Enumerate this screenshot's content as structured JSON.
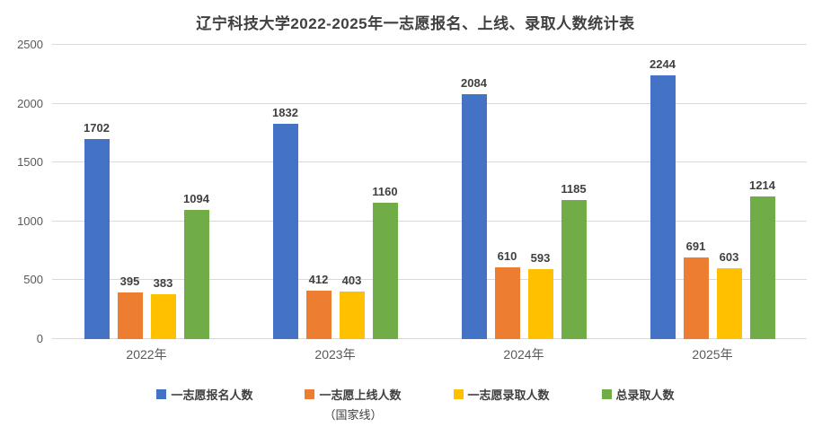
{
  "chart_data": {
    "type": "bar",
    "title": "辽宁科技大学2022-2025年一志愿报名、上线、录取人数统计表",
    "categories": [
      "2022年",
      "2023年",
      "2024年",
      "2025年"
    ],
    "series": [
      {
        "name": "一志愿报名人数",
        "note": "",
        "color": "#4472C4",
        "values": [
          1702,
          1832,
          2084,
          2244
        ]
      },
      {
        "name": "一志愿上线人数",
        "note": "（国家线）",
        "color": "#ED7D31",
        "values": [
          395,
          412,
          610,
          691
        ]
      },
      {
        "name": "一志愿录取人数",
        "note": "",
        "color": "#FFC000",
        "values": [
          383,
          403,
          593,
          603
        ]
      },
      {
        "name": "总录取人数",
        "note": "",
        "color": "#70AD47",
        "values": [
          1094,
          1160,
          1185,
          1214
        ]
      }
    ],
    "xlabel": "",
    "ylabel": "",
    "ylim": [
      0,
      2500
    ],
    "yticks": [
      0,
      500,
      1000,
      1500,
      2000,
      2500
    ],
    "grid": true,
    "gridline_color": "#d9d9d9",
    "legend_position": "bottom",
    "background_color": "#ffffff"
  }
}
